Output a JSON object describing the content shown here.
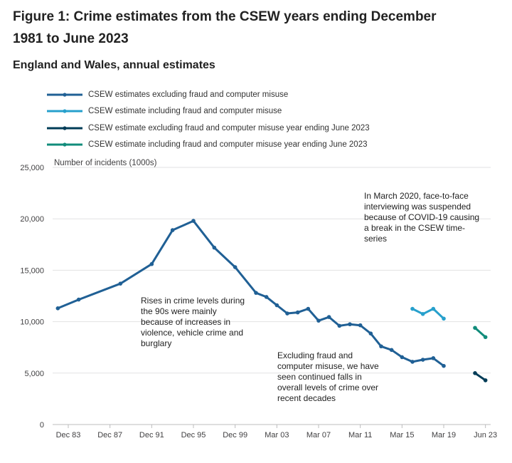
{
  "title": "Figure 1: Crime estimates from the CSEW years ending December 1981 to June 2023",
  "subtitle": "England and Wales, annual estimates",
  "colors": {
    "excl": "#206095",
    "incl": "#27a0cc",
    "excl_jun23": "#003c57",
    "incl_jun23": "#118c7b",
    "grid": "#e2e2e3",
    "axis_text": "#414042"
  },
  "chart_data": {
    "type": "line",
    "ylabel": "Number of incidents (1000s)",
    "ylim": [
      0,
      25000
    ],
    "yticks": [
      0,
      5000,
      10000,
      15000,
      20000,
      25000
    ],
    "ytick_labels": [
      "0",
      "5,000",
      "10,000",
      "15,000",
      "20,000",
      "25,000"
    ],
    "xlim": [
      1982,
      2024
    ],
    "xticks": [
      {
        "label": "Dec 83",
        "x": 1983.5
      },
      {
        "label": "Dec 87",
        "x": 1987.5
      },
      {
        "label": "Dec 91",
        "x": 1991.5
      },
      {
        "label": "Dec 95",
        "x": 1995.5
      },
      {
        "label": "Dec 99",
        "x": 1999.5
      },
      {
        "label": "Mar 03",
        "x": 2003.5
      },
      {
        "label": "Mar 07",
        "x": 2007.5
      },
      {
        "label": "Mar 11",
        "x": 2011.5
      },
      {
        "label": "Mar 15",
        "x": 2015.5
      },
      {
        "label": "Mar 19",
        "x": 2019.5
      },
      {
        "label": "Jun 23",
        "x": 2023.5
      }
    ],
    "grid": true,
    "legend_position": "top-left",
    "series": [
      {
        "name": "CSEW estimates excluding fraud and computer misuse",
        "color": "#206095",
        "points": [
          [
            1982.5,
            11300
          ],
          [
            1984.5,
            12150
          ],
          [
            1988.5,
            13700
          ],
          [
            1991.5,
            15600
          ],
          [
            1993.5,
            18900
          ],
          [
            1995.5,
            19800
          ],
          [
            1997.5,
            17200
          ],
          [
            1999.5,
            15300
          ],
          [
            2001.5,
            12800
          ],
          [
            2002.5,
            12400
          ],
          [
            2003.5,
            11600
          ],
          [
            2004.5,
            10800
          ],
          [
            2005.5,
            10900
          ],
          [
            2006.5,
            11250
          ],
          [
            2007.5,
            10100
          ],
          [
            2008.5,
            10450
          ],
          [
            2009.5,
            9600
          ],
          [
            2010.5,
            9750
          ],
          [
            2011.5,
            9650
          ],
          [
            2012.5,
            8850
          ],
          [
            2013.5,
            7600
          ],
          [
            2014.5,
            7250
          ],
          [
            2015.5,
            6550
          ],
          [
            2016.5,
            6100
          ],
          [
            2017.5,
            6300
          ],
          [
            2018.5,
            6450
          ],
          [
            2019.5,
            5700
          ]
        ]
      },
      {
        "name": "CSEW estimate including fraud and computer misuse",
        "color": "#27a0cc",
        "points": [
          [
            2016.5,
            11250
          ],
          [
            2017.5,
            10750
          ],
          [
            2018.5,
            11250
          ],
          [
            2019.5,
            10300
          ]
        ]
      },
      {
        "name": "CSEW estimate excluding fraud and computer misuse year ending June 2023",
        "color": "#003c57",
        "points": [
          [
            2022.5,
            5000
          ],
          [
            2023.5,
            4300
          ]
        ]
      },
      {
        "name": "CSEW estimate including fraud and computer misuse year ending June 2023",
        "color": "#118c7b",
        "points": [
          [
            2022.5,
            9400
          ],
          [
            2023.5,
            8500
          ]
        ]
      }
    ],
    "annotations": [
      {
        "text": [
          "Rises in crime levels during",
          "the 90s were mainly",
          "because of increases in",
          "violence, vehicle crime and",
          "burglary"
        ]
      },
      {
        "text": [
          "In March 2020, face-to-face",
          "interviewing was suspended",
          "because of COVID-19 causing",
          "a break in the CSEW time-",
          "series"
        ]
      },
      {
        "text": [
          "Excluding fraud and",
          "computer misuse, we have",
          "seen continued falls in",
          "overall levels of crime over",
          "recent decades"
        ]
      }
    ]
  }
}
